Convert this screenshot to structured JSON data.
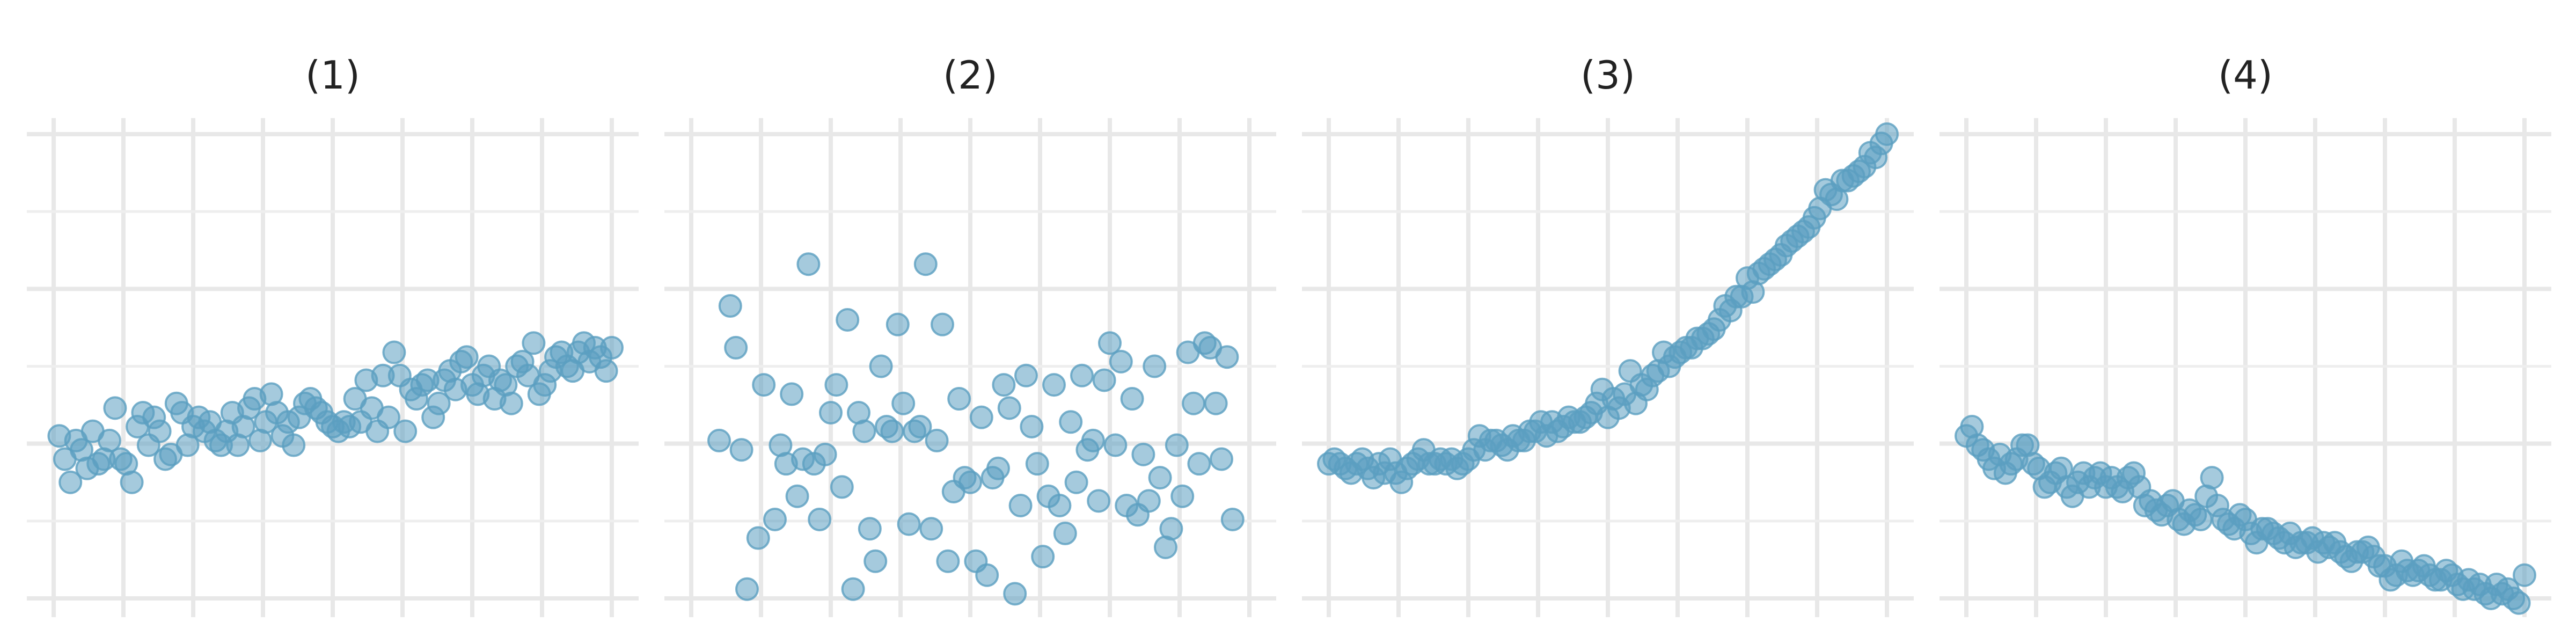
{
  "colors": {
    "point": "#5b9fc1",
    "grid": "#e8e8e8",
    "title": "#222222"
  },
  "chart_data": [
    {
      "type": "scatter",
      "title": "(1)",
      "xlim": [
        0,
        1
      ],
      "ylim": [
        0,
        1
      ],
      "grid": true,
      "x": [
        0.01,
        0.02,
        0.03,
        0.04,
        0.05,
        0.06,
        0.07,
        0.08,
        0.09,
        0.1,
        0.11,
        0.12,
        0.13,
        0.14,
        0.15,
        0.16,
        0.17,
        0.18,
        0.19,
        0.2,
        0.21,
        0.22,
        0.23,
        0.24,
        0.25,
        0.26,
        0.27,
        0.28,
        0.29,
        0.3,
        0.31,
        0.32,
        0.33,
        0.34,
        0.35,
        0.36,
        0.37,
        0.38,
        0.39,
        0.4,
        0.41,
        0.42,
        0.43,
        0.44,
        0.45,
        0.46,
        0.47,
        0.48,
        0.49,
        0.5,
        0.51,
        0.52,
        0.53,
        0.54,
        0.55,
        0.56,
        0.57,
        0.58,
        0.59,
        0.6,
        0.61,
        0.62,
        0.63,
        0.64,
        0.65,
        0.66,
        0.67,
        0.68,
        0.69,
        0.7,
        0.71,
        0.72,
        0.73,
        0.74,
        0.75,
        0.76,
        0.77,
        0.78,
        0.79,
        0.8,
        0.81,
        0.82,
        0.83,
        0.84,
        0.85,
        0.86,
        0.87,
        0.88,
        0.89,
        0.9,
        0.91,
        0.92,
        0.93,
        0.94,
        0.95,
        0.96,
        0.97,
        0.98,
        0.99,
        1.0
      ],
      "y": [
        0.35,
        0.3,
        0.25,
        0.34,
        0.32,
        0.28,
        0.36,
        0.29,
        0.3,
        0.34,
        0.41,
        0.3,
        0.29,
        0.25,
        0.37,
        0.4,
        0.33,
        0.39,
        0.36,
        0.3,
        0.31,
        0.42,
        0.4,
        0.33,
        0.37,
        0.39,
        0.36,
        0.38,
        0.34,
        0.33,
        0.36,
        0.4,
        0.33,
        0.37,
        0.41,
        0.43,
        0.34,
        0.38,
        0.44,
        0.4,
        0.35,
        0.38,
        0.33,
        0.39,
        0.42,
        0.43,
        0.41,
        0.4,
        0.38,
        0.37,
        0.36,
        0.38,
        0.37,
        0.43,
        0.38,
        0.47,
        0.41,
        0.36,
        0.48,
        0.39,
        0.53,
        0.48,
        0.36,
        0.45,
        0.43,
        0.46,
        0.47,
        0.39,
        0.42,
        0.47,
        0.49,
        0.45,
        0.51,
        0.52,
        0.46,
        0.44,
        0.48,
        0.5,
        0.43,
        0.47,
        0.46,
        0.42,
        0.5,
        0.51,
        0.48,
        0.55,
        0.44,
        0.46,
        0.49,
        0.52,
        0.53,
        0.5,
        0.49,
        0.53,
        0.55,
        0.51,
        0.54,
        0.52,
        0.49,
        0.54
      ]
    },
    {
      "type": "scatter",
      "title": "(2)",
      "xlim": [
        0,
        1
      ],
      "ylim": [
        0,
        1
      ],
      "grid": true,
      "x": [
        0.05,
        0.07,
        0.08,
        0.09,
        0.1,
        0.12,
        0.13,
        0.15,
        0.16,
        0.17,
        0.18,
        0.19,
        0.2,
        0.21,
        0.22,
        0.23,
        0.24,
        0.25,
        0.26,
        0.27,
        0.28,
        0.29,
        0.3,
        0.31,
        0.32,
        0.33,
        0.34,
        0.35,
        0.36,
        0.37,
        0.38,
        0.39,
        0.4,
        0.41,
        0.42,
        0.43,
        0.44,
        0.45,
        0.46,
        0.47,
        0.48,
        0.49,
        0.5,
        0.51,
        0.52,
        0.53,
        0.54,
        0.55,
        0.56,
        0.57,
        0.58,
        0.59,
        0.6,
        0.61,
        0.62,
        0.63,
        0.64,
        0.65,
        0.66,
        0.67,
        0.68,
        0.69,
        0.7,
        0.71,
        0.72,
        0.73,
        0.74,
        0.75,
        0.76,
        0.77,
        0.78,
        0.79,
        0.8,
        0.81,
        0.82,
        0.83,
        0.84,
        0.85,
        0.86,
        0.87,
        0.88,
        0.89,
        0.9,
        0.91,
        0.92,
        0.93,
        0.94,
        0.95,
        0.96,
        0.97
      ],
      "y": [
        0.34,
        0.63,
        0.54,
        0.32,
        0.02,
        0.13,
        0.46,
        0.17,
        0.33,
        0.29,
        0.44,
        0.22,
        0.3,
        0.72,
        0.29,
        0.17,
        0.31,
        0.4,
        0.46,
        0.24,
        0.6,
        0.02,
        0.4,
        0.36,
        0.15,
        0.08,
        0.5,
        0.37,
        0.36,
        0.59,
        0.42,
        0.16,
        0.36,
        0.37,
        0.72,
        0.15,
        0.34,
        0.59,
        0.08,
        0.23,
        0.43,
        0.26,
        0.25,
        0.08,
        0.39,
        0.05,
        0.26,
        0.28,
        0.46,
        0.41,
        0.01,
        0.2,
        0.48,
        0.37,
        0.29,
        0.09,
        0.22,
        0.46,
        0.2,
        0.14,
        0.38,
        0.25,
        0.48,
        0.32,
        0.34,
        0.21,
        0.47,
        0.55,
        0.33,
        0.51,
        0.2,
        0.43,
        0.18,
        0.31,
        0.21,
        0.5,
        0.26,
        0.11,
        0.15,
        0.33,
        0.22,
        0.53,
        0.42,
        0.29,
        0.55,
        0.54,
        0.42,
        0.3,
        0.52,
        0.17
      ]
    },
    {
      "type": "scatter",
      "title": "(3)",
      "xlim": [
        0,
        1
      ],
      "ylim": [
        0,
        1
      ],
      "grid": true,
      "x": [
        0.0,
        0.01,
        0.02,
        0.03,
        0.04,
        0.05,
        0.06,
        0.07,
        0.08,
        0.09,
        0.1,
        0.11,
        0.12,
        0.13,
        0.14,
        0.15,
        0.16,
        0.17,
        0.18,
        0.19,
        0.2,
        0.21,
        0.22,
        0.23,
        0.24,
        0.25,
        0.26,
        0.27,
        0.28,
        0.29,
        0.3,
        0.31,
        0.32,
        0.33,
        0.34,
        0.35,
        0.36,
        0.37,
        0.38,
        0.39,
        0.4,
        0.41,
        0.42,
        0.43,
        0.44,
        0.45,
        0.46,
        0.47,
        0.48,
        0.49,
        0.5,
        0.51,
        0.52,
        0.53,
        0.54,
        0.55,
        0.56,
        0.57,
        0.58,
        0.59,
        0.6,
        0.61,
        0.62,
        0.63,
        0.64,
        0.65,
        0.66,
        0.67,
        0.68,
        0.69,
        0.7,
        0.71,
        0.72,
        0.73,
        0.74,
        0.75,
        0.76,
        0.77,
        0.78,
        0.79,
        0.8,
        0.81,
        0.82,
        0.83,
        0.84,
        0.85,
        0.86,
        0.87,
        0.88,
        0.89,
        0.9,
        0.91,
        0.92,
        0.93,
        0.94,
        0.95,
        0.96,
        0.97,
        0.98,
        0.99,
        1.0
      ],
      "y": [
        0.29,
        0.3,
        0.29,
        0.28,
        0.27,
        0.29,
        0.3,
        0.28,
        0.26,
        0.29,
        0.27,
        0.3,
        0.27,
        0.25,
        0.28,
        0.29,
        0.3,
        0.32,
        0.29,
        0.29,
        0.3,
        0.29,
        0.3,
        0.28,
        0.29,
        0.3,
        0.32,
        0.35,
        0.32,
        0.34,
        0.34,
        0.33,
        0.32,
        0.35,
        0.34,
        0.34,
        0.36,
        0.36,
        0.38,
        0.35,
        0.38,
        0.36,
        0.37,
        0.39,
        0.38,
        0.38,
        0.39,
        0.4,
        0.42,
        0.45,
        0.39,
        0.43,
        0.41,
        0.44,
        0.49,
        0.42,
        0.46,
        0.45,
        0.48,
        0.49,
        0.53,
        0.5,
        0.52,
        0.53,
        0.54,
        0.54,
        0.56,
        0.56,
        0.57,
        0.58,
        0.6,
        0.63,
        0.62,
        0.65,
        0.65,
        0.69,
        0.66,
        0.7,
        0.71,
        0.72,
        0.73,
        0.74,
        0.76,
        0.77,
        0.78,
        0.79,
        0.8,
        0.82,
        0.84,
        0.88,
        0.87,
        0.86,
        0.9,
        0.9,
        0.91,
        0.92,
        0.93,
        0.96,
        0.95,
        0.98,
        1.0
      ]
    },
    {
      "type": "scatter",
      "title": "(4)",
      "xlim": [
        0,
        1
      ],
      "ylim": [
        0,
        1
      ],
      "grid": true,
      "x": [
        0.0,
        0.01,
        0.02,
        0.03,
        0.04,
        0.05,
        0.06,
        0.07,
        0.08,
        0.09,
        0.1,
        0.11,
        0.12,
        0.13,
        0.14,
        0.15,
        0.16,
        0.17,
        0.18,
        0.19,
        0.2,
        0.21,
        0.22,
        0.23,
        0.24,
        0.25,
        0.26,
        0.27,
        0.28,
        0.29,
        0.3,
        0.31,
        0.32,
        0.33,
        0.34,
        0.35,
        0.36,
        0.37,
        0.38,
        0.39,
        0.4,
        0.41,
        0.42,
        0.43,
        0.44,
        0.45,
        0.46,
        0.47,
        0.48,
        0.49,
        0.5,
        0.51,
        0.52,
        0.53,
        0.54,
        0.55,
        0.56,
        0.57,
        0.58,
        0.59,
        0.6,
        0.61,
        0.62,
        0.63,
        0.64,
        0.65,
        0.66,
        0.67,
        0.68,
        0.69,
        0.7,
        0.71,
        0.72,
        0.73,
        0.74,
        0.75,
        0.76,
        0.77,
        0.78,
        0.79,
        0.8,
        0.81,
        0.82,
        0.83,
        0.84,
        0.85,
        0.86,
        0.87,
        0.88,
        0.89,
        0.9,
        0.91,
        0.92,
        0.93,
        0.94,
        0.95,
        0.96,
        0.97,
        0.98,
        0.99,
        1.0
      ],
      "y": [
        0.35,
        0.37,
        0.33,
        0.32,
        0.3,
        0.28,
        0.31,
        0.27,
        0.29,
        0.3,
        0.33,
        0.33,
        0.29,
        0.28,
        0.24,
        0.25,
        0.27,
        0.28,
        0.24,
        0.22,
        0.25,
        0.27,
        0.24,
        0.26,
        0.27,
        0.24,
        0.26,
        0.24,
        0.23,
        0.26,
        0.27,
        0.24,
        0.2,
        0.21,
        0.19,
        0.18,
        0.2,
        0.21,
        0.17,
        0.16,
        0.19,
        0.18,
        0.17,
        0.22,
        0.26,
        0.2,
        0.17,
        0.16,
        0.15,
        0.18,
        0.17,
        0.14,
        0.12,
        0.15,
        0.15,
        0.14,
        0.13,
        0.12,
        0.14,
        0.11,
        0.12,
        0.12,
        0.13,
        0.1,
        0.12,
        0.11,
        0.12,
        0.1,
        0.09,
        0.08,
        0.1,
        0.1,
        0.11,
        0.09,
        0.07,
        0.07,
        0.04,
        0.05,
        0.08,
        0.06,
        0.05,
        0.06,
        0.07,
        0.05,
        0.04,
        0.04,
        0.06,
        0.05,
        0.03,
        0.02,
        0.04,
        0.02,
        0.03,
        0.01,
        0.0,
        0.03,
        0.01,
        0.02,
        0.0,
        -0.01,
        0.05
      ]
    }
  ]
}
